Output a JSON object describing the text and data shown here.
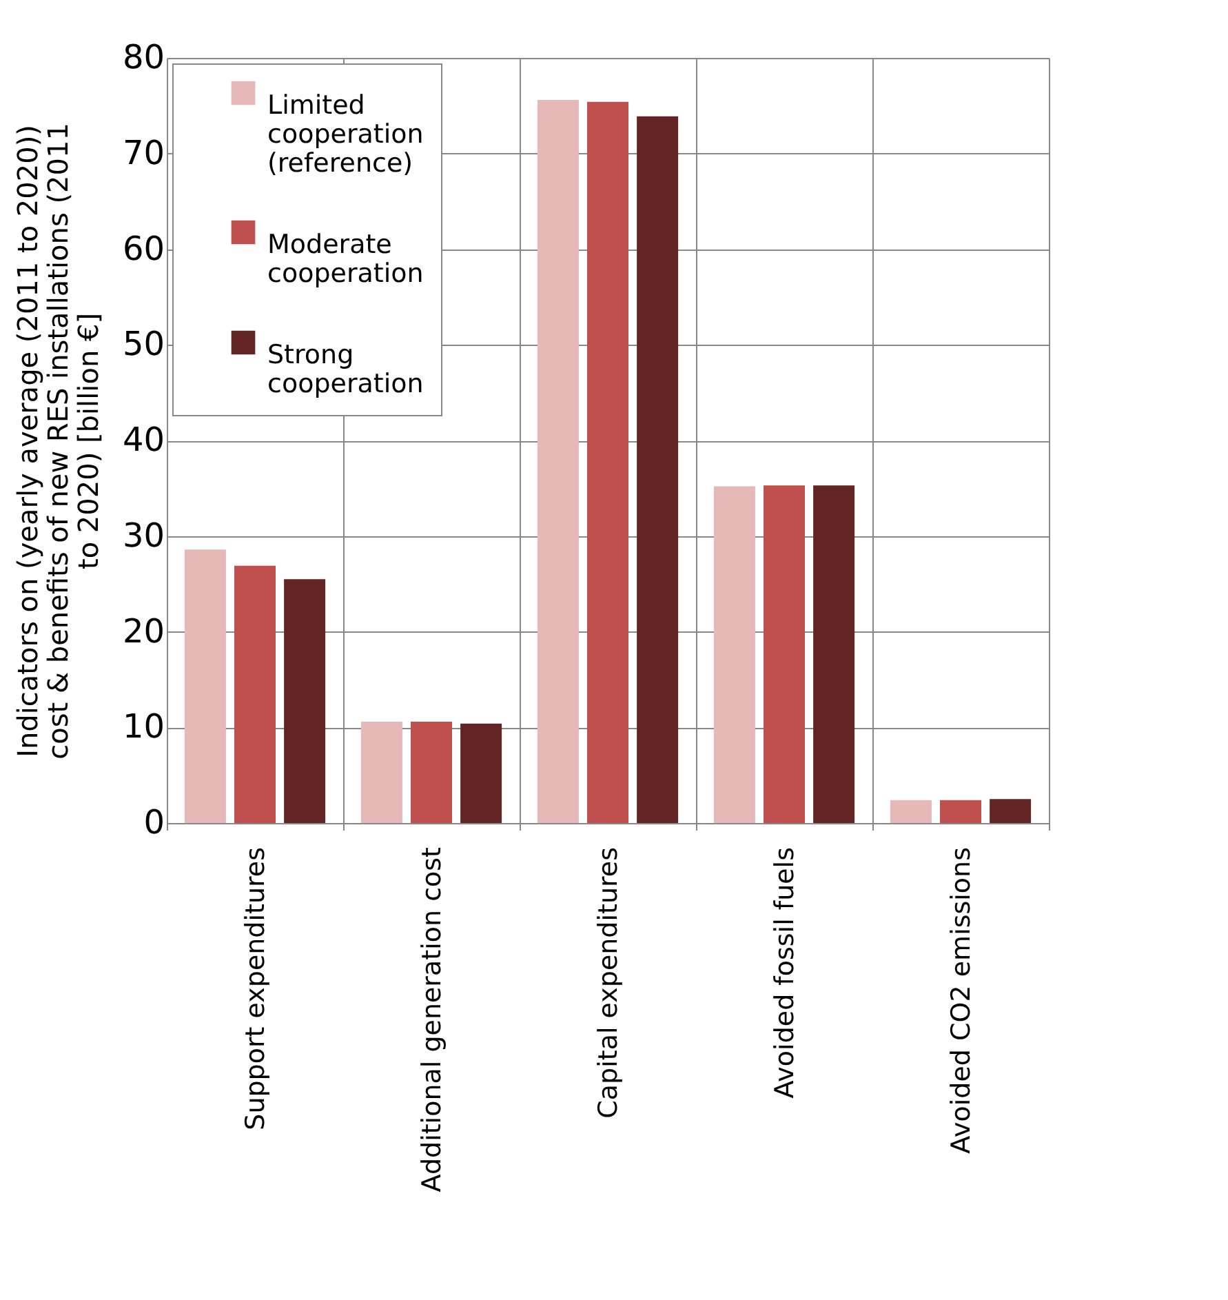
{
  "chart_data": {
    "type": "bar",
    "ylabel": "Indicators on (yearly average (2011 to 2020)) cost & benefits of new RES installations (2011 to 2020) [billion €]",
    "categories": [
      "Support expenditures",
      "Additional generation cost",
      "Capital expenditures",
      "Avoided fossil fuels",
      "Avoided CO2 emissions"
    ],
    "series": [
      {
        "name": "Limited cooperation (reference)",
        "color": "#e6b8b7",
        "values": [
          28.6,
          10.6,
          75.6,
          35.2,
          2.4
        ]
      },
      {
        "name": "Moderate cooperation",
        "color": "#c0504d",
        "values": [
          26.9,
          10.6,
          75.4,
          35.3,
          2.4
        ]
      },
      {
        "name": "Strong cooperation",
        "color": "#632523",
        "values": [
          25.5,
          10.4,
          73.9,
          35.3,
          2.5
        ]
      }
    ],
    "ylim": [
      0,
      80
    ],
    "yticks": [
      0,
      10,
      20,
      30,
      40,
      50,
      60,
      70,
      80
    ],
    "grid": true,
    "legend": "top left"
  }
}
